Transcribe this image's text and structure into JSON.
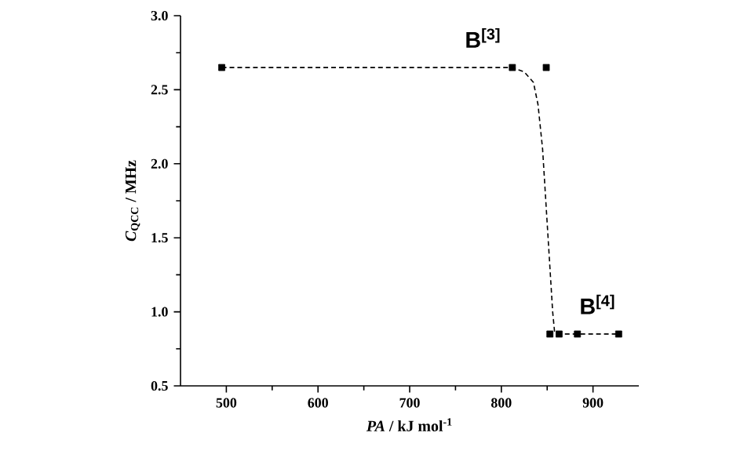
{
  "chart_data": {
    "type": "scatter",
    "xlabel": "*PA* / kJ mol$^{-1}$",
    "ylabel": "*C*$_{QCC}$ / MHz",
    "xlim": [
      450,
      950
    ],
    "xticks": [
      500,
      600,
      700,
      800,
      900
    ],
    "ylim": [
      0.5,
      3.0
    ],
    "yticks": [
      0.5,
      {
        "value": 1.0,
        "label": "1.0"
      },
      1.5,
      {
        "value": 2.0,
        "label": "2.0"
      },
      2.5,
      {
        "value": 3.0,
        "label": "3.0"
      }
    ],
    "grid": false,
    "series": [
      {
        "type": "scatter",
        "marker": "square",
        "color": "#000000",
        "x": [
          495,
          812,
          849,
          853,
          863,
          883,
          928
        ],
        "values": [
          2.65,
          2.65,
          2.65,
          0.85,
          0.85,
          0.85,
          0.85
        ]
      },
      {
        "type": "line",
        "marker": "none",
        "line_style": "dashed",
        "color": "#000000",
        "x": [
          495,
          812,
          825,
          835,
          840,
          845,
          850,
          853,
          856,
          858,
          862,
          928
        ],
        "values": [
          2.65,
          2.65,
          2.62,
          2.55,
          2.4,
          2.1,
          1.6,
          1.3,
          1.0,
          0.87,
          0.85,
          0.85
        ]
      }
    ],
    "annotations": [
      "B$^{[3]}$",
      "B$^{[4]}$"
    ]
  }
}
